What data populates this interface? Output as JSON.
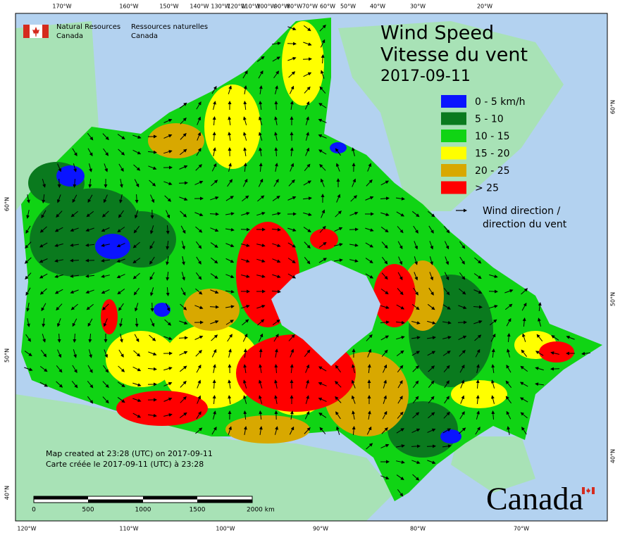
{
  "header": {
    "org_en": "Natural Resources",
    "org_en2": "Canada",
    "org_fr": "Ressources naturelles",
    "org_fr2": "Canada"
  },
  "title": {
    "en": "Wind Speed",
    "fr": "Vitesse du vent",
    "date": "2017-09-11"
  },
  "legend": {
    "items": [
      {
        "label": "0 - 5 km/h",
        "color": "#0a14ff"
      },
      {
        "label": "5 - 10",
        "color": "#0a7a1e"
      },
      {
        "label": "10 - 15",
        "color": "#10d414"
      },
      {
        "label": "15 - 20",
        "color": "#ffff00"
      },
      {
        "label": "20 - 25",
        "color": "#d8a800"
      },
      {
        "label": "> 25",
        "color": "#ff0000"
      }
    ],
    "direction_en": "Wind direction /",
    "direction_fr": "direction du vent"
  },
  "graticule": {
    "top": [
      "170°W",
      "160°W",
      "150°W",
      "140°W",
      "130°W",
      "120°W",
      "110°W",
      "100°W",
      "90°W",
      "80°W",
      "70°W",
      "60°W",
      "50°W",
      "40°W",
      "30°W",
      "20°W"
    ],
    "bottom": [
      "120°W",
      "110°W",
      "100°W",
      "90°W",
      "80°W",
      "70°W"
    ],
    "left": [
      "60°N",
      "50°N",
      "40°N"
    ],
    "right": [
      "60°N",
      "50°N",
      "40°N"
    ]
  },
  "credits": {
    "en": "Map created at 23:28 (UTC) on 2017-09-11",
    "fr": "Carte créée le 2017-09-11 (UTC) à 23:28"
  },
  "scale": {
    "labels": [
      "0",
      "500",
      "1000",
      "1500",
      "2000 km"
    ]
  },
  "wordmark": "Canada"
}
